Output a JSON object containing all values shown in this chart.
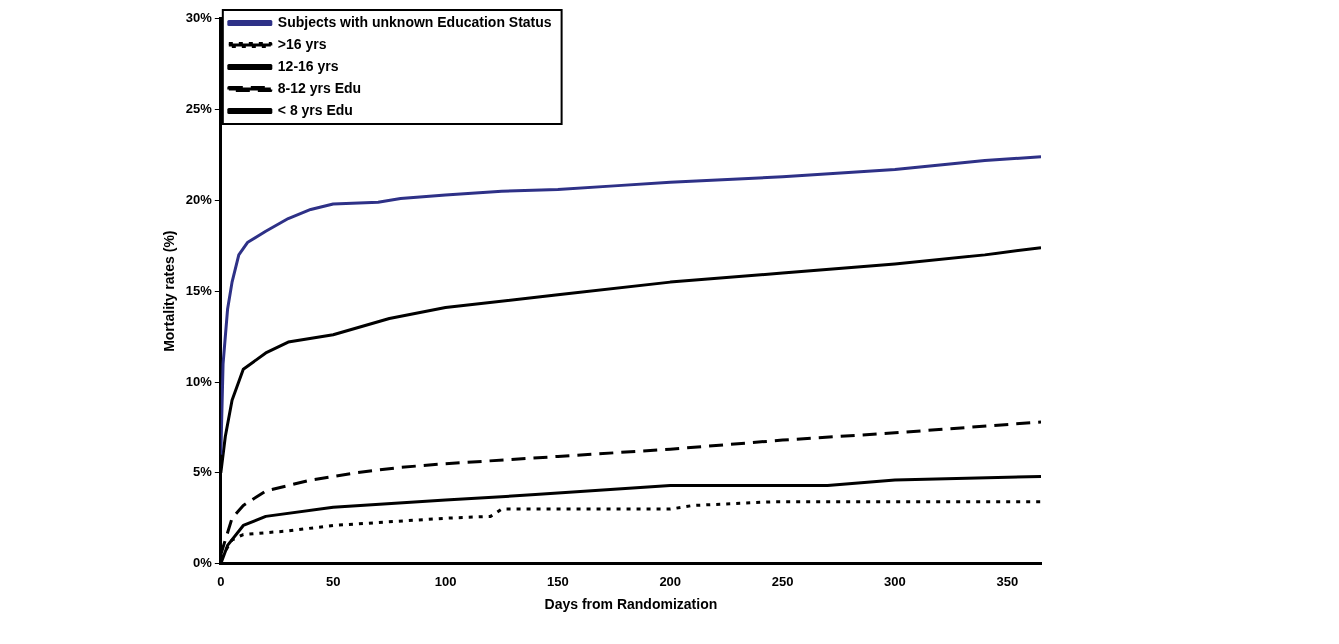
{
  "chart_data": {
    "type": "line",
    "xlabel": "Days from Randomization",
    "ylabel": "Mortality rates (%)",
    "xlim": [
      0,
      365
    ],
    "xticks": [
      0,
      50,
      100,
      150,
      200,
      250,
      300,
      350
    ],
    "ylim": [
      0,
      30
    ],
    "yticks": [
      {
        "value": 0,
        "label": "0%"
      },
      {
        "value": 5,
        "label": "5%"
      },
      {
        "value": 10,
        "label": "10%"
      },
      {
        "value": 15,
        "label": "15%"
      },
      {
        "value": 20,
        "label": "20%"
      },
      {
        "value": 25,
        "label": "25%"
      },
      {
        "value": 30,
        "label": "30%"
      }
    ],
    "grid": false,
    "legend": "top left",
    "marker": "none",
    "series": [
      {
        "name": "Subjects with unknown Education Status",
        "color": "#2e3187",
        "line_style": "solid",
        "x": [
          0,
          1,
          3,
          5,
          8,
          12,
          20,
          30,
          40,
          50,
          70,
          80,
          100,
          125,
          150,
          175,
          200,
          250,
          300,
          340,
          365
        ],
        "values": [
          6,
          11,
          14,
          15.5,
          17,
          17.7,
          18.3,
          19,
          19.5,
          19.8,
          19.9,
          20.1,
          20.3,
          20.5,
          20.6,
          20.8,
          21,
          21.3,
          21.7,
          22.2,
          22.4
        ]
      },
      {
        "name": ">16 yrs",
        "color": "#000000",
        "line_style": "dotted",
        "x": [
          0,
          5,
          10,
          30,
          50,
          100,
          120,
          125,
          200,
          210,
          245,
          365
        ],
        "values": [
          0.3,
          1.3,
          1.6,
          1.8,
          2.1,
          2.5,
          2.6,
          3.0,
          3.0,
          3.2,
          3.4,
          3.4
        ]
      },
      {
        "name": "12-16 yrs",
        "color": "#000000",
        "line_style": "solid",
        "x": [
          0,
          3,
          10,
          20,
          50,
          100,
          140,
          200,
          270,
          300,
          365
        ],
        "values": [
          0,
          1,
          2.1,
          2.6,
          3.1,
          3.5,
          3.8,
          4.3,
          4.3,
          4.6,
          4.8
        ]
      },
      {
        "name": "8-12 yrs Edu",
        "color": "#000000",
        "line_style": "dashed",
        "x": [
          0,
          5,
          10,
          20,
          40,
          60,
          80,
          100,
          150,
          200,
          250,
          300,
          365
        ],
        "values": [
          0.5,
          2.5,
          3.2,
          4,
          4.6,
          5,
          5.3,
          5.5,
          5.9,
          6.3,
          6.8,
          7.2,
          7.8
        ]
      },
      {
        "name": "< 8 yrs Edu",
        "color": "#000000",
        "line_style": "solid",
        "x": [
          0,
          2,
          5,
          10,
          20,
          30,
          50,
          75,
          100,
          150,
          200,
          250,
          300,
          340,
          365
        ],
        "values": [
          5,
          7,
          9,
          10.7,
          11.6,
          12.2,
          12.6,
          13.5,
          14.1,
          14.8,
          15.5,
          16,
          16.5,
          17,
          17.4
        ]
      }
    ]
  }
}
